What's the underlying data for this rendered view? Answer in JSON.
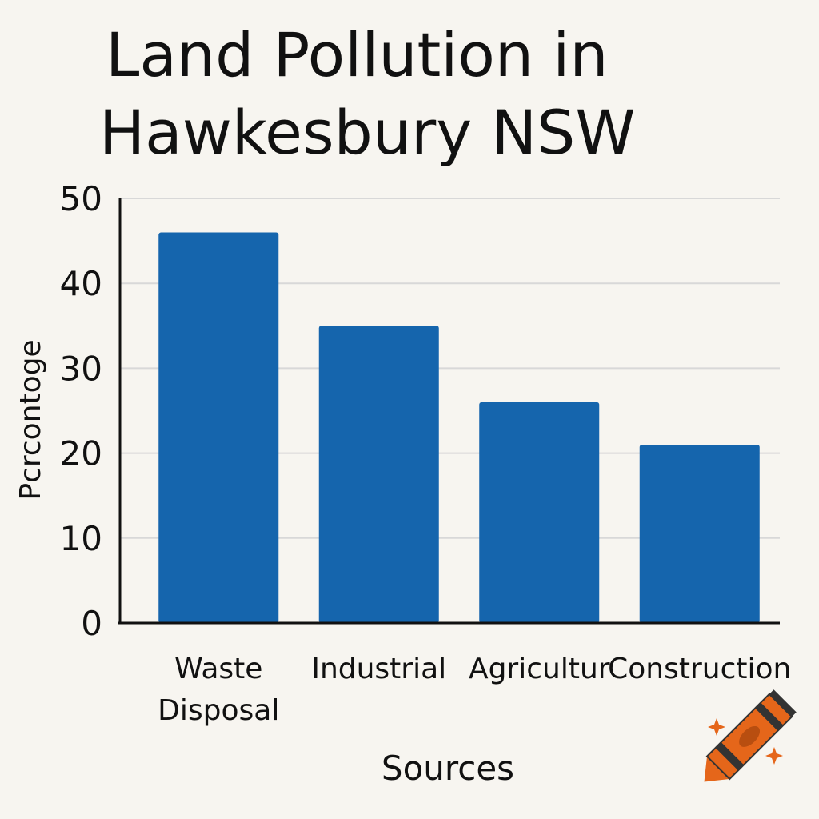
{
  "chart_data": {
    "type": "bar",
    "title_lines": [
      "Land Pollution in",
      "Hawkesbury NSW"
    ],
    "categories": [
      {
        "lines": [
          "Waste",
          "Disposal"
        ]
      },
      {
        "lines": [
          "Industrial"
        ]
      },
      {
        "lines": [
          "Agricultur"
        ]
      },
      {
        "lines": [
          "Construction"
        ]
      }
    ],
    "values": [
      46,
      35,
      26,
      21
    ],
    "xlabel": "Sources",
    "ylabel": "Pcrcontoge",
    "ylim": [
      0,
      50
    ],
    "yticks": [
      0,
      10,
      20,
      30,
      40,
      50
    ],
    "grid": true,
    "bar_color": "#1565ad",
    "grid_color": "#d8d8d8",
    "decoration_icon": "crayon-icon",
    "decoration_color": "#e5661a"
  }
}
